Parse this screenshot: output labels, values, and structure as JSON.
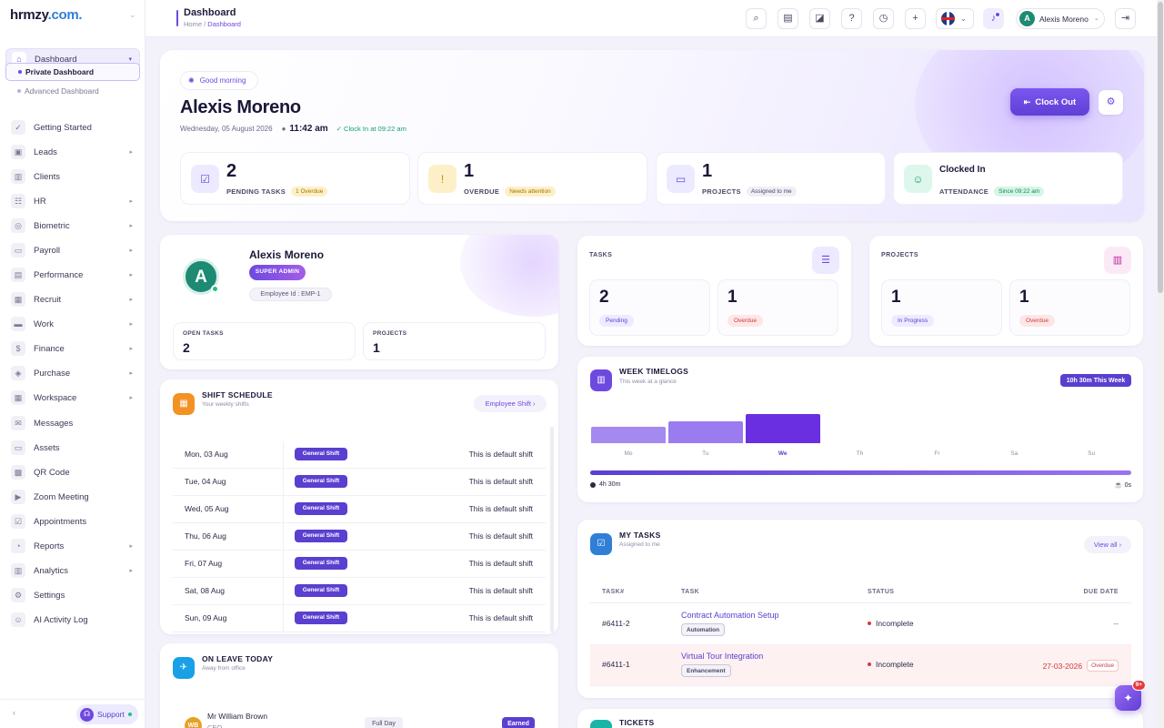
{
  "app": {
    "logo_main": "hrmzy",
    "logo_dot": ".com."
  },
  "sidebar": {
    "items": [
      {
        "label": "Dashboard",
        "icon": "home-icon",
        "glyph": "⌂",
        "active": true,
        "chevron": "▾"
      },
      {
        "label": "Getting Started",
        "icon": "rocket-icon",
        "glyph": "✓",
        "chevron": ""
      },
      {
        "label": "Leads",
        "icon": "id-card-icon",
        "glyph": "▣",
        "chevron": "▸"
      },
      {
        "label": "Clients",
        "icon": "chart-icon",
        "glyph": "▥",
        "chevron": ""
      },
      {
        "label": "HR",
        "icon": "users-icon",
        "glyph": "☷",
        "chevron": "▸"
      },
      {
        "label": "Biometric",
        "icon": "fingerprint-icon",
        "glyph": "◎",
        "chevron": "▸"
      },
      {
        "label": "Payroll",
        "icon": "wallet-icon",
        "glyph": "▭",
        "chevron": "▸"
      },
      {
        "label": "Performance",
        "icon": "bar-chart-icon",
        "glyph": "▤",
        "chevron": "▸"
      },
      {
        "label": "Recruit",
        "icon": "badge-icon",
        "glyph": "▦",
        "chevron": "▸"
      },
      {
        "label": "Work",
        "icon": "briefcase-icon",
        "glyph": "▬",
        "chevron": "▸"
      },
      {
        "label": "Finance",
        "icon": "dollar-icon",
        "glyph": "$",
        "chevron": "▸"
      },
      {
        "label": "Purchase",
        "icon": "layers-icon",
        "glyph": "◈",
        "chevron": "▸"
      },
      {
        "label": "Workspace",
        "icon": "grid-icon",
        "glyph": "▦",
        "chevron": "▸"
      },
      {
        "label": "Messages",
        "icon": "message-icon",
        "glyph": "✉",
        "chevron": ""
      },
      {
        "label": "Assets",
        "icon": "monitor-icon",
        "glyph": "▭",
        "chevron": ""
      },
      {
        "label": "QR Code",
        "icon": "qr-icon",
        "glyph": "▩",
        "chevron": ""
      },
      {
        "label": "Zoom Meeting",
        "icon": "video-icon",
        "glyph": "▶",
        "chevron": ""
      },
      {
        "label": "Appointments",
        "icon": "calendar-check-icon",
        "glyph": "☑",
        "chevron": ""
      },
      {
        "label": "Reports",
        "icon": "pie-icon",
        "glyph": "◔",
        "chevron": "▸"
      },
      {
        "label": "Analytics",
        "icon": "analytics-icon",
        "glyph": "▥",
        "chevron": "▸"
      },
      {
        "label": "Settings",
        "icon": "settings-icon",
        "glyph": "⚙",
        "chevron": ""
      },
      {
        "label": "AI Activity Log",
        "icon": "robot-icon",
        "glyph": "☺",
        "chevron": ""
      }
    ],
    "sub_items": [
      {
        "label": "Private Dashboard",
        "active": true
      },
      {
        "label": "Advanced Dashboard",
        "active": false
      }
    ],
    "support_label": "Support"
  },
  "header": {
    "title": "Dashboard",
    "crumb_home": "Home",
    "crumb_sep": " / ",
    "crumb_current": "Dashboard",
    "user_initial": "A",
    "user_name": "Alexis Moreno"
  },
  "hero": {
    "greeting": "Good morning",
    "name": "Alexis Moreno",
    "date": "Wednesday, 05 August 2026",
    "time": "11:42 am",
    "clock_in": "Clock In at 09:22 am",
    "clock_out_label": "Clock Out",
    "stats": [
      {
        "value": "2",
        "label": "PENDING TASKS",
        "badge": "1 Overdue",
        "icon": "checkbox-icon",
        "glyph": "☑",
        "bg": "#eceaff",
        "fg": "#6e49e0",
        "bbg": "#fdf0c8",
        "bfg": "#a87300"
      },
      {
        "value": "1",
        "label": "OVERDUE",
        "badge": "Needs attention",
        "icon": "alert-icon",
        "glyph": "!",
        "bg": "#fdf0c8",
        "fg": "#c98a00",
        "bbg": "#fdf0c8",
        "bfg": "#a87300"
      },
      {
        "value": "1",
        "label": "PROJECTS",
        "badge": "Assigned to me",
        "icon": "briefcase-icon",
        "glyph": "▭",
        "bg": "#eceaff",
        "fg": "#6e49e0",
        "bbg": "#f0eff5",
        "bfg": "#4a4866"
      },
      {
        "title": "Clocked In",
        "label": "ATTENDANCE",
        "badge": "Since 09:22 am",
        "icon": "user-check-icon",
        "glyph": "☺",
        "bg": "#def7ec",
        "fg": "#17a06b",
        "bbg": "#d6f5e6",
        "bfg": "#0f8a58"
      }
    ]
  },
  "profile": {
    "initial": "A",
    "name": "Alexis Moreno",
    "role": "SUPER ADMIN",
    "employee_id": "Employee Id : EMP-1",
    "open_tasks_label": "OPEN TASKS",
    "open_tasks_value": "2",
    "projects_label": "PROJECTS",
    "projects_value": "1"
  },
  "tasks_summary": {
    "label": "TASKS",
    "pending_value": "2",
    "pending_label": "Pending",
    "overdue_value": "1",
    "overdue_label": "Overdue"
  },
  "projects_summary": {
    "label": "PROJECTS",
    "progress_value": "1",
    "progress_label": "In Progress",
    "overdue_value": "1",
    "overdue_label": "Overdue"
  },
  "shift": {
    "title": "SHIFT SCHEDULE",
    "subtitle": "Your weekly shifts",
    "button": "Employee Shift",
    "rows": [
      {
        "day": "Mon, 03 Aug",
        "shift": "General Shift",
        "desc": "This is default shift"
      },
      {
        "day": "Tue, 04 Aug",
        "shift": "General Shift",
        "desc": "This is default shift"
      },
      {
        "day": "Wed, 05 Aug",
        "shift": "General Shift",
        "desc": "This is default shift"
      },
      {
        "day": "Thu, 06 Aug",
        "shift": "General Shift",
        "desc": "This is default shift"
      },
      {
        "day": "Fri, 07 Aug",
        "shift": "General Shift",
        "desc": "This is default shift"
      },
      {
        "day": "Sat, 08 Aug",
        "shift": "General Shift",
        "desc": "This is default shift"
      },
      {
        "day": "Sun, 09 Aug",
        "shift": "General Shift",
        "desc": "This is default shift"
      }
    ]
  },
  "leave": {
    "title": "ON LEAVE TODAY",
    "subtitle": "Away from office",
    "initials": "WB",
    "name": "Mr William Brown",
    "role": "CEO",
    "type": "Full Day",
    "category": "Earned"
  },
  "week": {
    "title": "WEEK TIMELOGS",
    "subtitle": "This week at a glance",
    "badge": "10h 30m This Week",
    "days": [
      {
        "label": "Mo",
        "level": 0.55,
        "color": "#a48af0"
      },
      {
        "label": "Tu",
        "level": 0.75,
        "color": "#9a7bf0"
      },
      {
        "label": "We",
        "level": 1.0,
        "color": "#6a2fe0",
        "active": true
      },
      {
        "label": "Th",
        "level": 0
      },
      {
        "label": "Fr",
        "level": 0
      },
      {
        "label": "Sa",
        "level": 0
      },
      {
        "label": "Su",
        "level": 0
      }
    ],
    "progress": 1.0,
    "today_total": "4h 30m",
    "break_total": "0s"
  },
  "my_tasks": {
    "title": "MY TASKS",
    "subtitle": "Assigned to me",
    "view_all": "View all",
    "columns": [
      "TASK#",
      "TASK",
      "STATUS",
      "DUE DATE"
    ],
    "rows": [
      {
        "id": "#6411-2",
        "name": "Contract Automation Setup",
        "tag": "Automation",
        "status": "Incomplete",
        "due": "--",
        "overdue": ""
      },
      {
        "id": "#6411-1",
        "name": "Virtual Tour Integration",
        "tag": "Enhancement",
        "status": "Incomplete",
        "due": "27-03-2026",
        "overdue": "Overdue"
      }
    ]
  },
  "tickets": {
    "title": "TICKETS"
  },
  "fab": {
    "badge": "9+"
  }
}
